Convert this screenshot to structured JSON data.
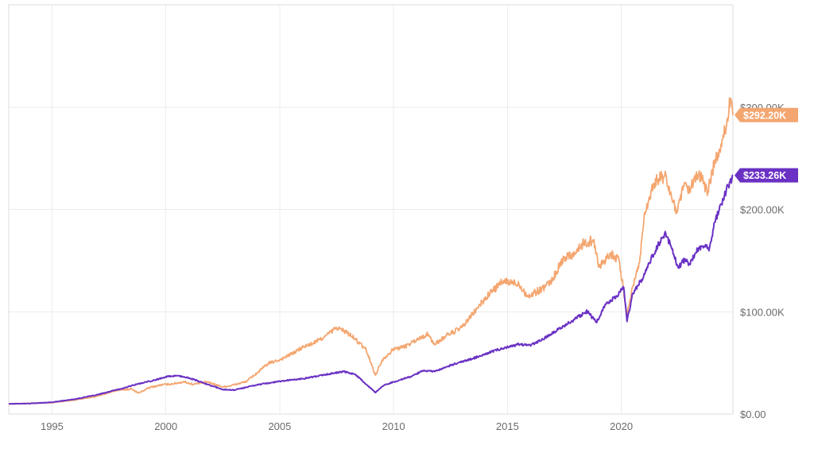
{
  "chart_data": {
    "type": "line",
    "x_ticks": [
      "1995",
      "2000",
      "2005",
      "2010",
      "2015",
      "2020"
    ],
    "y_ticks": [
      "$0.00",
      "$100.00K",
      "$200.00K",
      "$300.00K"
    ],
    "xlim": [
      1993.1,
      2024.9
    ],
    "ylim": [
      0,
      400000
    ],
    "grid": true,
    "series": [
      {
        "color": "#f4a670",
        "end_label": "$292.20K",
        "points": [
          [
            1993.1,
            10000
          ],
          [
            1994.0,
            10400
          ],
          [
            1995.0,
            11200
          ],
          [
            1996.0,
            13800
          ],
          [
            1997.0,
            17500
          ],
          [
            1997.8,
            23000
          ],
          [
            1998.5,
            24500
          ],
          [
            1998.8,
            20500
          ],
          [
            1999.3,
            26000
          ],
          [
            1999.8,
            28500
          ],
          [
            2000.3,
            29500
          ],
          [
            2000.8,
            31500
          ],
          [
            2001.2,
            29000
          ],
          [
            2001.8,
            31500
          ],
          [
            2002.5,
            26500
          ],
          [
            2002.8,
            27500
          ],
          [
            2003.5,
            31500
          ],
          [
            2004.0,
            40000
          ],
          [
            2004.5,
            49500
          ],
          [
            2005.0,
            53000
          ],
          [
            2005.5,
            58500
          ],
          [
            2006.0,
            65000
          ],
          [
            2006.5,
            69500
          ],
          [
            2007.0,
            76000
          ],
          [
            2007.5,
            84500
          ],
          [
            2007.9,
            80500
          ],
          [
            2008.3,
            73500
          ],
          [
            2008.8,
            62500
          ],
          [
            2009.2,
            38000
          ],
          [
            2009.5,
            53000
          ],
          [
            2010.0,
            63500
          ],
          [
            2010.5,
            66000
          ],
          [
            2011.0,
            72500
          ],
          [
            2011.5,
            78000
          ],
          [
            2011.8,
            68000
          ],
          [
            2012.3,
            76500
          ],
          [
            2013.0,
            84500
          ],
          [
            2013.7,
            104000
          ],
          [
            2014.2,
            117500
          ],
          [
            2014.8,
            129500
          ],
          [
            2015.5,
            127500
          ],
          [
            2015.9,
            114500
          ],
          [
            2016.5,
            122500
          ],
          [
            2016.9,
            128500
          ],
          [
            2017.5,
            153500
          ],
          [
            2018.0,
            157500
          ],
          [
            2018.3,
            166000
          ],
          [
            2018.8,
            170500
          ],
          [
            2019.0,
            143500
          ],
          [
            2019.5,
            157000
          ],
          [
            2019.9,
            150500
          ],
          [
            2020.25,
            97000
          ],
          [
            2020.5,
            124500
          ],
          [
            2020.8,
            148000
          ],
          [
            2021.0,
            194000
          ],
          [
            2021.3,
            217500
          ],
          [
            2021.6,
            229500
          ],
          [
            2021.9,
            232500
          ],
          [
            2022.2,
            212500
          ],
          [
            2022.45,
            197000
          ],
          [
            2022.75,
            222500
          ],
          [
            2023.0,
            218500
          ],
          [
            2023.4,
            234500
          ],
          [
            2023.8,
            217500
          ],
          [
            2024.1,
            246500
          ],
          [
            2024.5,
            270500
          ],
          [
            2024.8,
            308500
          ],
          [
            2024.9,
            292200
          ]
        ]
      },
      {
        "color": "#6a31c4",
        "end_label": "$233.26K",
        "points": [
          [
            1993.1,
            10000
          ],
          [
            1994.0,
            10300
          ],
          [
            1995.0,
            11500
          ],
          [
            1996.0,
            14500
          ],
          [
            1997.0,
            19000
          ],
          [
            1998.0,
            24500
          ],
          [
            1998.7,
            29000
          ],
          [
            1999.5,
            33000
          ],
          [
            2000.0,
            36500
          ],
          [
            2000.5,
            37500
          ],
          [
            2001.0,
            35500
          ],
          [
            2001.5,
            31500
          ],
          [
            2002.0,
            27500
          ],
          [
            2002.5,
            24000
          ],
          [
            2003.0,
            23500
          ],
          [
            2003.5,
            26000
          ],
          [
            2004.0,
            28500
          ],
          [
            2005.0,
            32000
          ],
          [
            2006.0,
            34500
          ],
          [
            2007.0,
            38500
          ],
          [
            2007.8,
            41500
          ],
          [
            2008.3,
            39000
          ],
          [
            2008.8,
            29000
          ],
          [
            2009.2,
            21000
          ],
          [
            2009.6,
            28500
          ],
          [
            2010.3,
            33500
          ],
          [
            2010.8,
            37000
          ],
          [
            2011.3,
            42500
          ],
          [
            2011.8,
            41500
          ],
          [
            2012.5,
            47500
          ],
          [
            2013.5,
            54500
          ],
          [
            2014.5,
            62500
          ],
          [
            2015.5,
            68000
          ],
          [
            2016.0,
            67000
          ],
          [
            2016.5,
            72500
          ],
          [
            2017.0,
            79500
          ],
          [
            2017.8,
            90500
          ],
          [
            2018.5,
            100500
          ],
          [
            2018.9,
            89500
          ],
          [
            2019.3,
            107500
          ],
          [
            2019.8,
            115500
          ],
          [
            2020.1,
            124000
          ],
          [
            2020.25,
            90500
          ],
          [
            2020.5,
            118000
          ],
          [
            2020.9,
            131500
          ],
          [
            2021.3,
            151500
          ],
          [
            2021.6,
            164500
          ],
          [
            2021.95,
            176500
          ],
          [
            2022.2,
            162500
          ],
          [
            2022.5,
            143000
          ],
          [
            2022.8,
            151500
          ],
          [
            2023.0,
            146500
          ],
          [
            2023.4,
            162500
          ],
          [
            2023.7,
            165500
          ],
          [
            2023.85,
            159500
          ],
          [
            2024.1,
            187500
          ],
          [
            2024.4,
            205500
          ],
          [
            2024.7,
            223500
          ],
          [
            2024.9,
            233260
          ]
        ]
      }
    ]
  }
}
